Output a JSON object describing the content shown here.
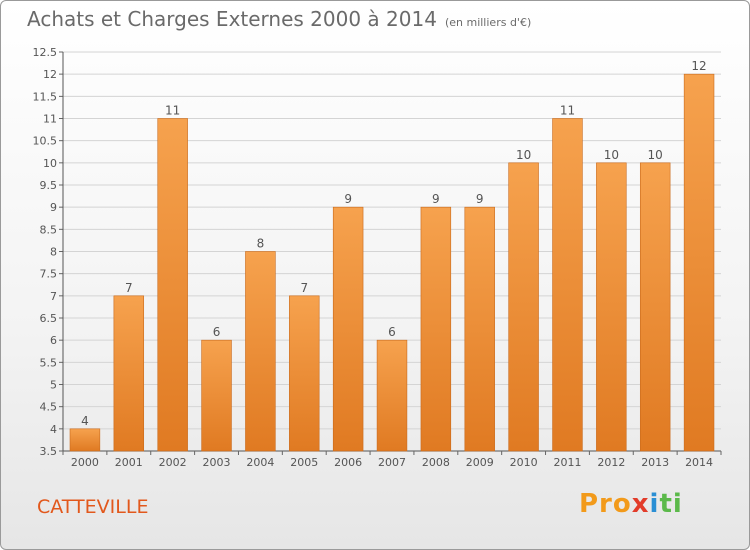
{
  "title": "Achats et Charges Externes 2000 à 2014",
  "subtitle": "(en milliers d'€)",
  "place_name": "CATTEVILLE",
  "logo_text": "Proxiti",
  "colors": {
    "bar_top": "#f6a24e",
    "bar_bottom": "#e07a22",
    "place": "#e2581c",
    "text": "#555555"
  },
  "chart_data": {
    "type": "bar",
    "title": "Achats et Charges Externes 2000 à 2014",
    "subtitle": "(en milliers d'€)",
    "categories": [
      "2000",
      "2001",
      "2002",
      "2003",
      "2004",
      "2005",
      "2006",
      "2007",
      "2008",
      "2009",
      "2010",
      "2011",
      "2012",
      "2013",
      "2014"
    ],
    "values": [
      4,
      7,
      11,
      6,
      8,
      7,
      9,
      6,
      9,
      9,
      10,
      11,
      10,
      10,
      12
    ],
    "data_labels": [
      "4",
      "7",
      "11",
      "6",
      "8",
      "7",
      "9",
      "6",
      "9",
      "9",
      "10",
      "11",
      "10",
      "10",
      "12"
    ],
    "ylim": [
      3.5,
      12.5
    ],
    "yticks": [
      3.5,
      4,
      4.5,
      5,
      5.5,
      6,
      6.5,
      7,
      7.5,
      8,
      8.5,
      9,
      9.5,
      10,
      10.5,
      11,
      11.5,
      12,
      12.5
    ],
    "ytick_labels": [
      "3.5",
      "4",
      "4.5",
      "5",
      "5.5",
      "6",
      "6.5",
      "7",
      "7.5",
      "8",
      "8.5",
      "9",
      "9.5",
      "10",
      "10.5",
      "11",
      "11.5",
      "12",
      "12.5"
    ],
    "grid": true,
    "xlabel": "",
    "ylabel": ""
  }
}
